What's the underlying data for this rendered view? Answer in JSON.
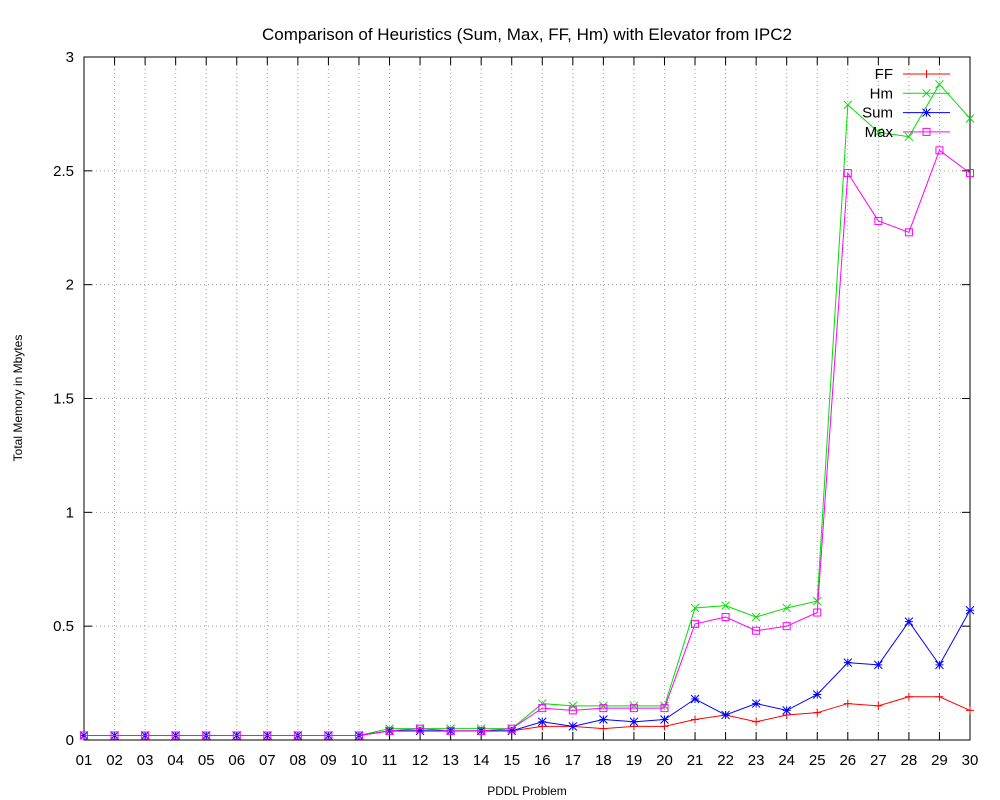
{
  "chart_data": {
    "type": "line",
    "title": "Comparison of Heuristics (Sum, Max, FF, Hm) with Elevator from IPC2",
    "xlabel": "PDDL Problem",
    "ylabel": "Total Memory in Mbytes",
    "ylim": [
      0,
      3
    ],
    "yticks": [
      "0",
      "0.5",
      "1",
      "1.5",
      "2",
      "2.5",
      "3"
    ],
    "grid": true,
    "legend_position": "top-right",
    "categories": [
      "01",
      "02",
      "03",
      "04",
      "05",
      "06",
      "07",
      "08",
      "09",
      "10",
      "11",
      "12",
      "13",
      "14",
      "15",
      "16",
      "17",
      "18",
      "19",
      "20",
      "21",
      "22",
      "23",
      "24",
      "25",
      "26",
      "27",
      "28",
      "29",
      "30"
    ],
    "series": [
      {
        "name": "FF",
        "color": "#ff0000",
        "marker": "plus",
        "values": [
          0.02,
          0.02,
          0.02,
          0.02,
          0.02,
          0.02,
          0.02,
          0.02,
          0.02,
          0.02,
          0.04,
          0.04,
          0.04,
          0.04,
          0.04,
          0.06,
          0.06,
          0.05,
          0.06,
          0.06,
          0.09,
          0.11,
          0.08,
          0.11,
          0.12,
          0.16,
          0.15,
          0.19,
          0.19,
          0.13
        ]
      },
      {
        "name": "Hm",
        "color": "#00e000",
        "marker": "cross",
        "values": [
          0.02,
          0.02,
          0.02,
          0.02,
          0.02,
          0.02,
          0.02,
          0.02,
          0.02,
          0.02,
          0.05,
          0.05,
          0.05,
          0.05,
          0.05,
          0.16,
          0.15,
          0.15,
          0.15,
          0.15,
          0.58,
          0.59,
          0.54,
          0.58,
          0.61,
          2.79,
          2.67,
          2.65,
          2.88,
          2.73
        ]
      },
      {
        "name": "Sum",
        "color": "#0000ff",
        "marker": "star",
        "values": [
          0.02,
          0.02,
          0.02,
          0.02,
          0.02,
          0.02,
          0.02,
          0.02,
          0.02,
          0.02,
          0.04,
          0.04,
          0.04,
          0.04,
          0.04,
          0.08,
          0.06,
          0.09,
          0.08,
          0.09,
          0.18,
          0.11,
          0.16,
          0.13,
          0.2,
          0.34,
          0.33,
          0.52,
          0.33,
          0.57
        ]
      },
      {
        "name": "Max",
        "color": "#ff00ff",
        "marker": "square",
        "values": [
          0.02,
          0.02,
          0.02,
          0.02,
          0.02,
          0.02,
          0.02,
          0.02,
          0.02,
          0.02,
          0.04,
          0.05,
          0.04,
          0.04,
          0.05,
          0.14,
          0.13,
          0.14,
          0.14,
          0.14,
          0.51,
          0.54,
          0.48,
          0.5,
          0.56,
          2.49,
          2.28,
          2.23,
          2.59,
          2.49
        ]
      }
    ]
  }
}
